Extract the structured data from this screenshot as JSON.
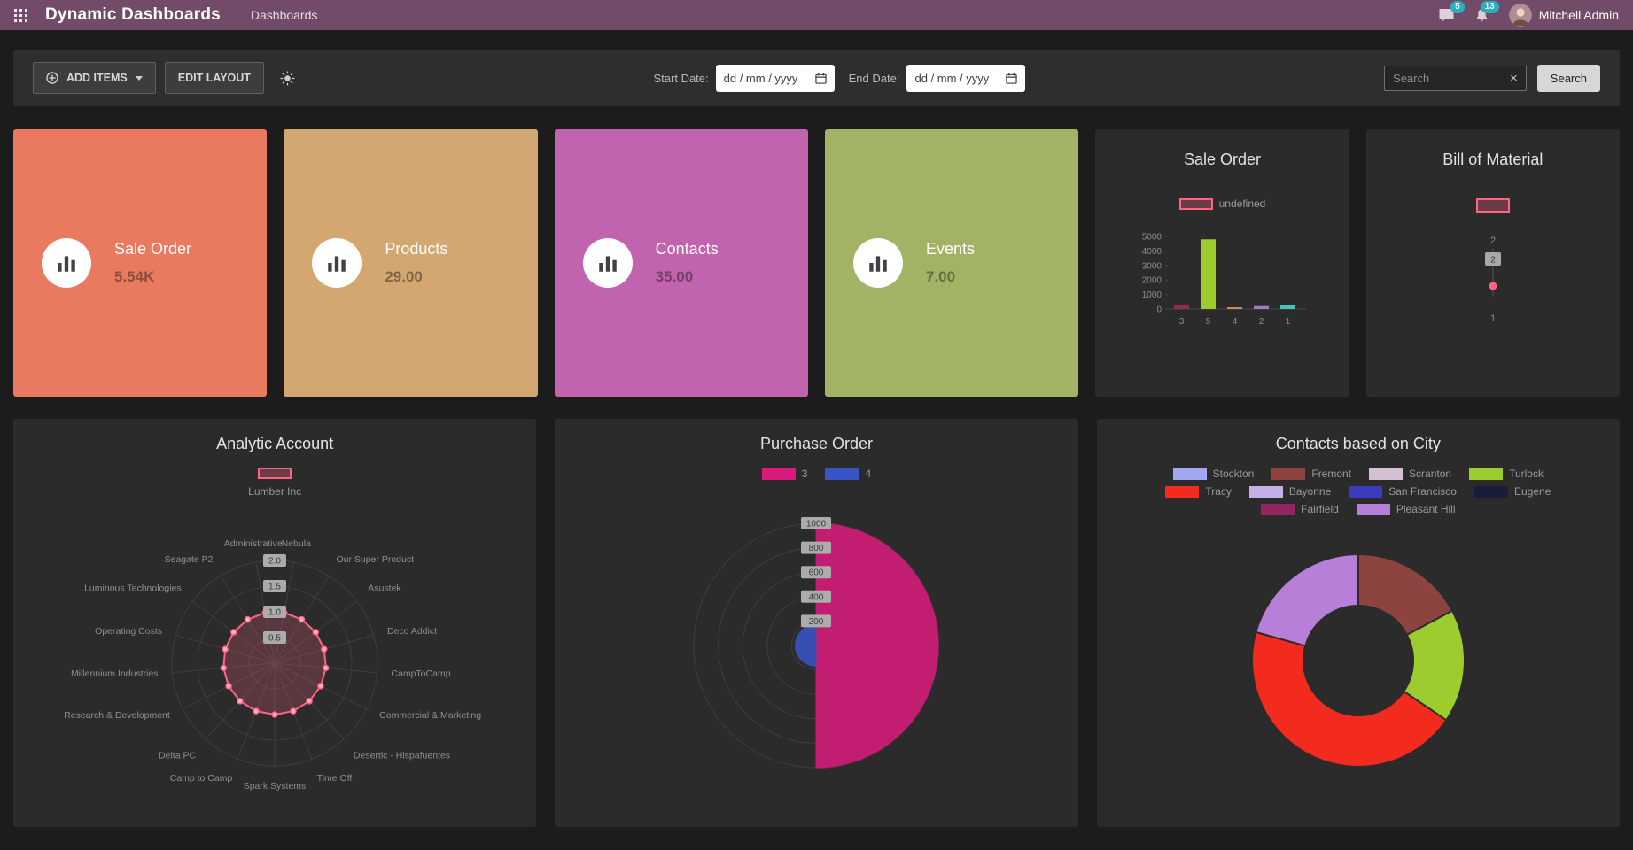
{
  "topbar": {
    "title": "Dynamic Dashboards",
    "menu_item": "Dashboards",
    "user_name": "Mitchell Admin",
    "messages_badge": "5",
    "activities_badge": "13",
    "badge_color": "#2bafbd",
    "bar_color": "#714b67"
  },
  "toolbar": {
    "add_items_label": "ADD ITEMS",
    "edit_layout_label": "EDIT LAYOUT",
    "start_date_label": "Start Date:",
    "end_date_label": "End Date:",
    "date_placeholder": "dd / mm / yyyy",
    "search_placeholder": "Search",
    "search_button_label": "Search"
  },
  "kpis": [
    {
      "label": "Sale Order",
      "value": "5.54K",
      "color": "#ea7a5f"
    },
    {
      "label": "Products",
      "value": "29.00",
      "color": "#d2a770"
    },
    {
      "label": "Contacts",
      "value": "35.00",
      "color": "#c163ae"
    },
    {
      "label": "Events",
      "value": "7.00",
      "color": "#a2b366"
    }
  ],
  "chart_data": [
    {
      "id": "sale-order-bar",
      "type": "bar",
      "title": "Sale Order",
      "legend": [
        {
          "label": "undefined",
          "fill": "rgba(255,99,132,0.3)",
          "border": "#ff6384"
        }
      ],
      "categories": [
        "3",
        "5",
        "4",
        "2",
        "1"
      ],
      "values": [
        250,
        4800,
        100,
        200,
        300
      ],
      "bar_colors": [
        "#8d2f46",
        "#9ccc2e",
        "#c58c4f",
        "#9d7ad1",
        "#4bc0c0"
      ],
      "ylim": [
        0,
        5000
      ],
      "yticks": [
        0,
        1000,
        2000,
        3000,
        4000,
        5000
      ]
    },
    {
      "id": "bill-of-material",
      "type": "point",
      "title": "Bill of Material",
      "swatch": {
        "fill": "rgba(255,99,132,0.3)",
        "border": "#ff6384"
      },
      "tick_top": "2",
      "tick_badge": "2",
      "category_label": "1",
      "point_color": "#ff6384"
    },
    {
      "id": "analytic-radar",
      "type": "radar",
      "title": "Analytic Account",
      "legend": [
        {
          "label": "Lumber Inc",
          "fill": "rgba(255,99,132,0.3)",
          "border": "#ff6384"
        }
      ],
      "axes": [
        "Nebula",
        "Our Super Product",
        "Asustek",
        "Deco Addict",
        "CampToCamp",
        "Commercial & Marketing",
        "Desertic - Hispafuentes",
        "Time Off",
        "Spark Systems",
        "Camp to Camp",
        "Delta PC",
        "Research & Development",
        "Millennium Industries",
        "Operating Costs",
        "Luminous Technologies",
        "Seagate P2",
        "Administrative"
      ],
      "values": [
        1,
        1,
        1,
        1,
        1,
        1,
        1,
        1,
        1,
        1,
        1,
        1,
        1,
        1,
        1,
        1,
        1
      ],
      "ticks": [
        0.5,
        1.0,
        1.5,
        2.0
      ],
      "max": 2.0,
      "series_color": "#ff6384",
      "fill": "rgba(255,99,132,0.22)",
      "point_fill": "#ffb1c1"
    },
    {
      "id": "purchase-polar",
      "type": "polar",
      "title": "Purchase Order",
      "legend": [
        {
          "label": "3",
          "fill": "#d81b7c"
        },
        {
          "label": "4",
          "fill": "#3a53c5"
        }
      ],
      "labels": [
        "3",
        "4"
      ],
      "values": [
        1000,
        170
      ],
      "colors": [
        "#d81b7c",
        "#3a53c5"
      ],
      "ticks": [
        200,
        400,
        600,
        800,
        1000
      ],
      "max": 1000
    },
    {
      "id": "contacts-doughnut",
      "type": "doughnut",
      "title": "Contacts based on City",
      "labels": [
        "Stockton",
        "Fremont",
        "Scranton",
        "Turlock",
        "Tracy",
        "Bayonne",
        "San Francisco",
        "Eugene",
        "Fairfield",
        "Pleasant Hill"
      ],
      "colors": [
        "#a2a8f0",
        "#8d4440",
        "#d3c0d2",
        "#9ccc2e",
        "#f32b1e",
        "#c3aee8",
        "#3b3bbf",
        "#1b1b3a",
        "#93265f",
        "#b87fd9"
      ],
      "values": [
        0,
        5,
        0,
        5,
        13,
        0,
        0,
        0,
        0,
        6
      ],
      "legend_rows": [
        [
          0,
          1,
          2,
          3
        ],
        [
          4,
          5,
          6,
          7
        ],
        [
          8,
          9
        ]
      ]
    }
  ]
}
